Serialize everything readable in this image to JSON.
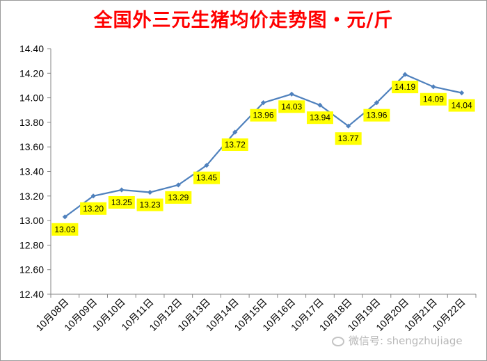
{
  "chart_data": {
    "type": "line",
    "title": "全国外三元生猪均价走势图・元/斤",
    "xlabel": "",
    "ylabel": "",
    "ylim": [
      12.4,
      14.4
    ],
    "ytick_step": 0.2,
    "grid": false,
    "legend": "none",
    "categories": [
      "10月08日",
      "10月09日",
      "10月10日",
      "10月11日",
      "10月12日",
      "10月13日",
      "10月14日",
      "10月15日",
      "10月16日",
      "10月17日",
      "10月18日",
      "10月19日",
      "10月20日",
      "10月21日",
      "10月22日"
    ],
    "series": [
      {
        "values": [
          13.03,
          13.2,
          13.25,
          13.23,
          13.29,
          13.45,
          13.72,
          13.96,
          14.03,
          13.94,
          13.77,
          13.96,
          14.19,
          14.09,
          14.04
        ]
      }
    ],
    "colors": {
      "line": "#4f81bd",
      "label_bg": "#ffff00",
      "title": "#ff0000"
    }
  },
  "watermark": {
    "text": "微信号: shengzhujiage"
  }
}
